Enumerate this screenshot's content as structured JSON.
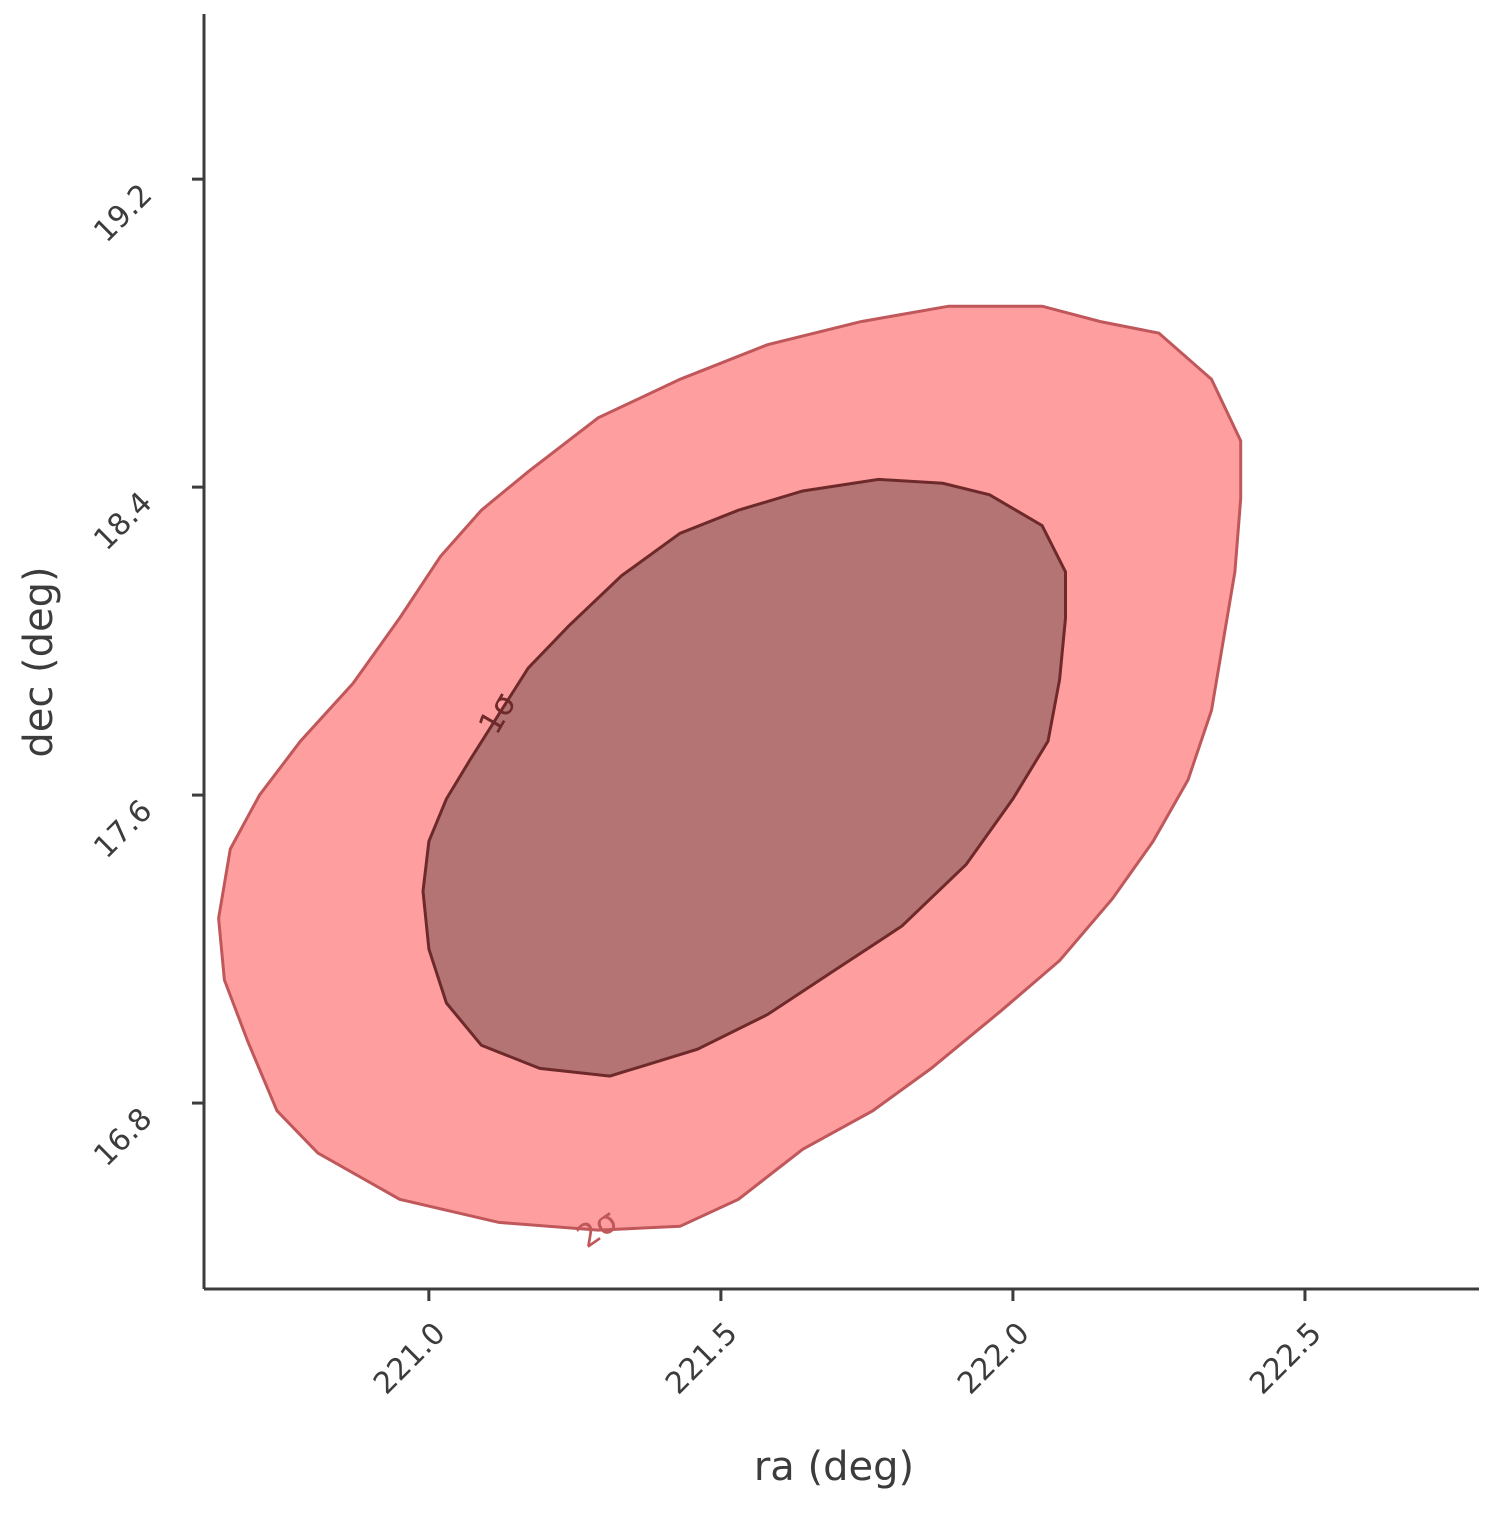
{
  "chart_data": {
    "type": "contour",
    "xlabel": "ra (deg)",
    "ylabel": "dec (deg)",
    "xlim": [
      220.615,
      222.798
    ],
    "ylim": [
      16.317,
      19.629
    ],
    "xticks": [
      {
        "value": 221.0,
        "label": "221.0"
      },
      {
        "value": 221.5,
        "label": "221.5"
      },
      {
        "value": 222.0,
        "label": "222.0"
      },
      {
        "value": 222.5,
        "label": "222.5"
      }
    ],
    "yticks": [
      {
        "value": 16.8,
        "label": "16.8"
      },
      {
        "value": 17.6,
        "label": "17.6"
      },
      {
        "value": 18.4,
        "label": "18.4"
      },
      {
        "value": 19.2,
        "label": "19.2"
      }
    ],
    "series": [
      {
        "name": "2σ",
        "color": "#ff9e9f",
        "line_color": "#c0575a",
        "x": [
          220.64,
          220.66,
          220.71,
          220.78,
          220.87,
          220.95,
          221.02,
          221.09,
          221.17,
          221.29,
          221.43,
          221.58,
          221.74,
          221.89,
          222.05,
          222.15,
          222.25,
          222.34,
          222.39,
          222.39,
          222.38,
          222.36,
          222.34,
          222.3,
          222.24,
          222.17,
          222.08,
          221.98,
          221.86,
          221.76,
          221.64,
          221.53,
          221.43,
          221.29,
          221.12,
          220.95,
          220.81,
          220.74,
          220.69,
          220.65
        ],
        "y": [
          17.28,
          17.46,
          17.6,
          17.74,
          17.89,
          18.06,
          18.22,
          18.34,
          18.44,
          18.58,
          18.68,
          18.77,
          18.83,
          18.87,
          18.87,
          18.83,
          18.8,
          18.68,
          18.52,
          18.37,
          18.18,
          18.0,
          17.82,
          17.64,
          17.48,
          17.33,
          17.17,
          17.04,
          16.89,
          16.78,
          16.68,
          16.55,
          16.48,
          16.47,
          16.49,
          16.55,
          16.67,
          16.78,
          16.96,
          17.12
        ]
      },
      {
        "name": "1σ",
        "color": "#b57474",
        "line_color": "#6e2a2a",
        "x": [
          220.99,
          221.0,
          221.03,
          221.07,
          221.12,
          221.17,
          221.24,
          221.33,
          221.43,
          221.53,
          221.64,
          221.77,
          221.88,
          221.96,
          222.05,
          222.09,
          222.09,
          222.08,
          222.06,
          222.0,
          221.92,
          221.81,
          221.7,
          221.58,
          221.46,
          221.31,
          221.19,
          221.09,
          221.03,
          221.0
        ],
        "y": [
          17.35,
          17.48,
          17.59,
          17.69,
          17.81,
          17.93,
          18.04,
          18.17,
          18.28,
          18.34,
          18.39,
          18.42,
          18.41,
          18.38,
          18.3,
          18.18,
          18.06,
          17.9,
          17.74,
          17.59,
          17.42,
          17.26,
          17.15,
          17.03,
          16.94,
          16.87,
          16.89,
          16.95,
          17.06,
          17.2
        ]
      }
    ]
  }
}
